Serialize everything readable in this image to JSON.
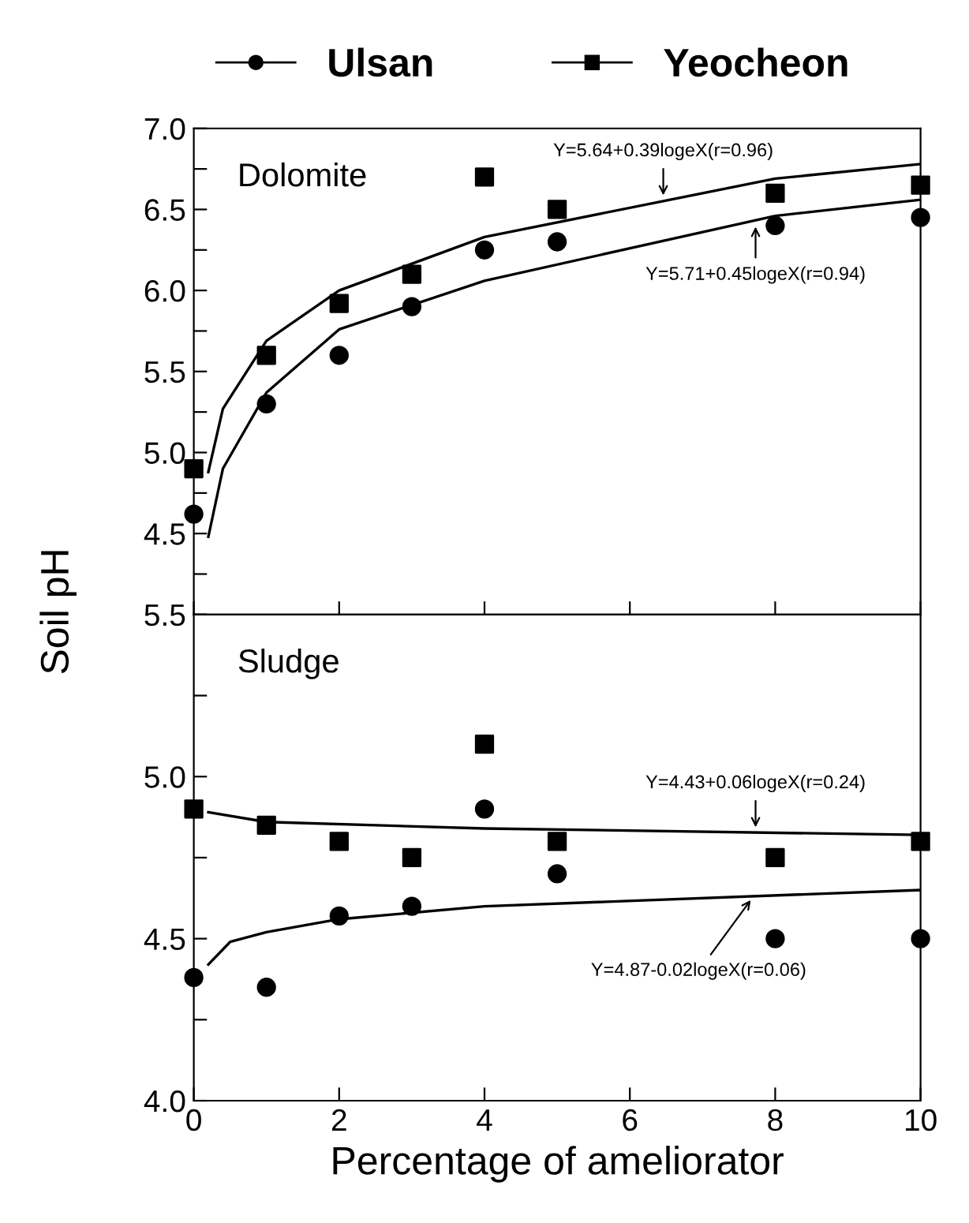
{
  "chart_data": [
    {
      "type": "scatter",
      "title": "Dolomite",
      "ylabel": "Soil pH",
      "legend": "top",
      "tick_labels": "y",
      "xlim": [
        0,
        10
      ],
      "xticks": [
        0,
        2,
        4,
        6,
        8,
        10
      ],
      "ylim": [
        4.0,
        7.0
      ],
      "yticks": [
        {
          "value": 4.0,
          "label": null
        },
        {
          "value": 4.25,
          "label": null
        },
        {
          "value": 4.5,
          "label": "4.5"
        },
        {
          "value": 4.75,
          "label": null
        },
        {
          "value": 5.0,
          "label": "5.0"
        },
        {
          "value": 5.25,
          "label": null
        },
        {
          "value": 5.5,
          "label": "5.5"
        },
        {
          "value": 5.75,
          "label": null
        },
        {
          "value": 6.0,
          "label": "6.0"
        },
        {
          "value": 6.25,
          "label": null
        },
        {
          "value": 6.5,
          "label": "6.5"
        },
        {
          "value": 6.75,
          "label": null
        },
        {
          "value": 7.0,
          "label": "7.0"
        }
      ],
      "series": [
        {
          "name": "Ulsan",
          "marker": "circle",
          "color": "#000000",
          "x": [
            0,
            1,
            2,
            3,
            4,
            5,
            8,
            10
          ],
          "values": [
            4.62,
            5.3,
            5.6,
            5.9,
            6.25,
            6.3,
            6.4,
            6.45
          ]
        },
        {
          "name": "Yeocheon",
          "marker": "square",
          "color": "#000000",
          "x": [
            0,
            1,
            2,
            3,
            4,
            5,
            8,
            10
          ],
          "values": [
            4.9,
            5.6,
            5.92,
            6.1,
            6.7,
            6.5,
            6.6,
            6.65
          ]
        },
        {
          "type": "line",
          "marker": "none",
          "color": "#000000",
          "x": [
            0.2,
            0.4,
            1,
            2,
            4,
            8,
            10
          ],
          "values": [
            4.48,
            4.9,
            5.37,
            5.76,
            6.06,
            6.46,
            6.56
          ]
        },
        {
          "type": "line",
          "marker": "none",
          "color": "#000000",
          "x": [
            0.2,
            0.4,
            1,
            2,
            4,
            8,
            10
          ],
          "values": [
            4.88,
            5.27,
            5.69,
            6.0,
            6.33,
            6.69,
            6.78
          ]
        }
      ],
      "annotations": [
        {
          "text": "Y=5.64+0.39logeX(r=0.96)",
          "x": 6.46,
          "y": 6.56
        },
        {
          "text": "Y=5.71+0.45logeX(r=0.94)",
          "x": 7.73,
          "y": 6.42
        }
      ]
    },
    {
      "type": "scatter",
      "title": "Sludge",
      "xlabel": "Percentage of ameliorator",
      "xlim": [
        0,
        10
      ],
      "xticks": [
        0,
        2,
        4,
        6,
        8,
        10
      ],
      "ylim": [
        4.0,
        5.5
      ],
      "yticks": [
        {
          "value": 4.0,
          "label": "4.0"
        },
        {
          "value": 4.25,
          "label": null
        },
        {
          "value": 4.5,
          "label": "4.5"
        },
        {
          "value": 4.75,
          "label": null
        },
        {
          "value": 5.0,
          "label": "5.0"
        },
        {
          "value": 5.25,
          "label": null
        },
        {
          "value": 5.5,
          "label": "5.5"
        }
      ],
      "series": [
        {
          "marker": "circle",
          "color": "#000000",
          "x": [
            0,
            1,
            2,
            3,
            4,
            5,
            8,
            10
          ],
          "values": [
            4.38,
            4.35,
            4.57,
            4.6,
            4.9,
            4.7,
            4.5,
            4.5
          ]
        },
        {
          "marker": "square",
          "color": "#000000",
          "x": [
            0,
            1,
            2,
            3,
            4,
            5,
            8,
            10
          ],
          "values": [
            4.9,
            4.85,
            4.8,
            4.75,
            5.1,
            4.8,
            4.75,
            4.8
          ]
        },
        {
          "type": "line",
          "marker": "none",
          "color": "#000000",
          "x": [
            0.2,
            0.5,
            1,
            2,
            4,
            10
          ],
          "values": [
            4.42,
            4.49,
            4.52,
            4.56,
            4.6,
            4.65
          ]
        },
        {
          "type": "line",
          "marker": "none",
          "color": "#000000",
          "x": [
            0.2,
            1,
            4,
            10
          ],
          "values": [
            4.89,
            4.86,
            4.84,
            4.82
          ]
        }
      ],
      "annotations": [
        {
          "text": "Y=4.43+0.06logeX(r=0.24)",
          "x": 7.73,
          "y": 4.83
        },
        {
          "text": "Y=4.87-0.02logeX(r=0.06)",
          "x": 7.7,
          "y": 4.63
        }
      ]
    }
  ]
}
